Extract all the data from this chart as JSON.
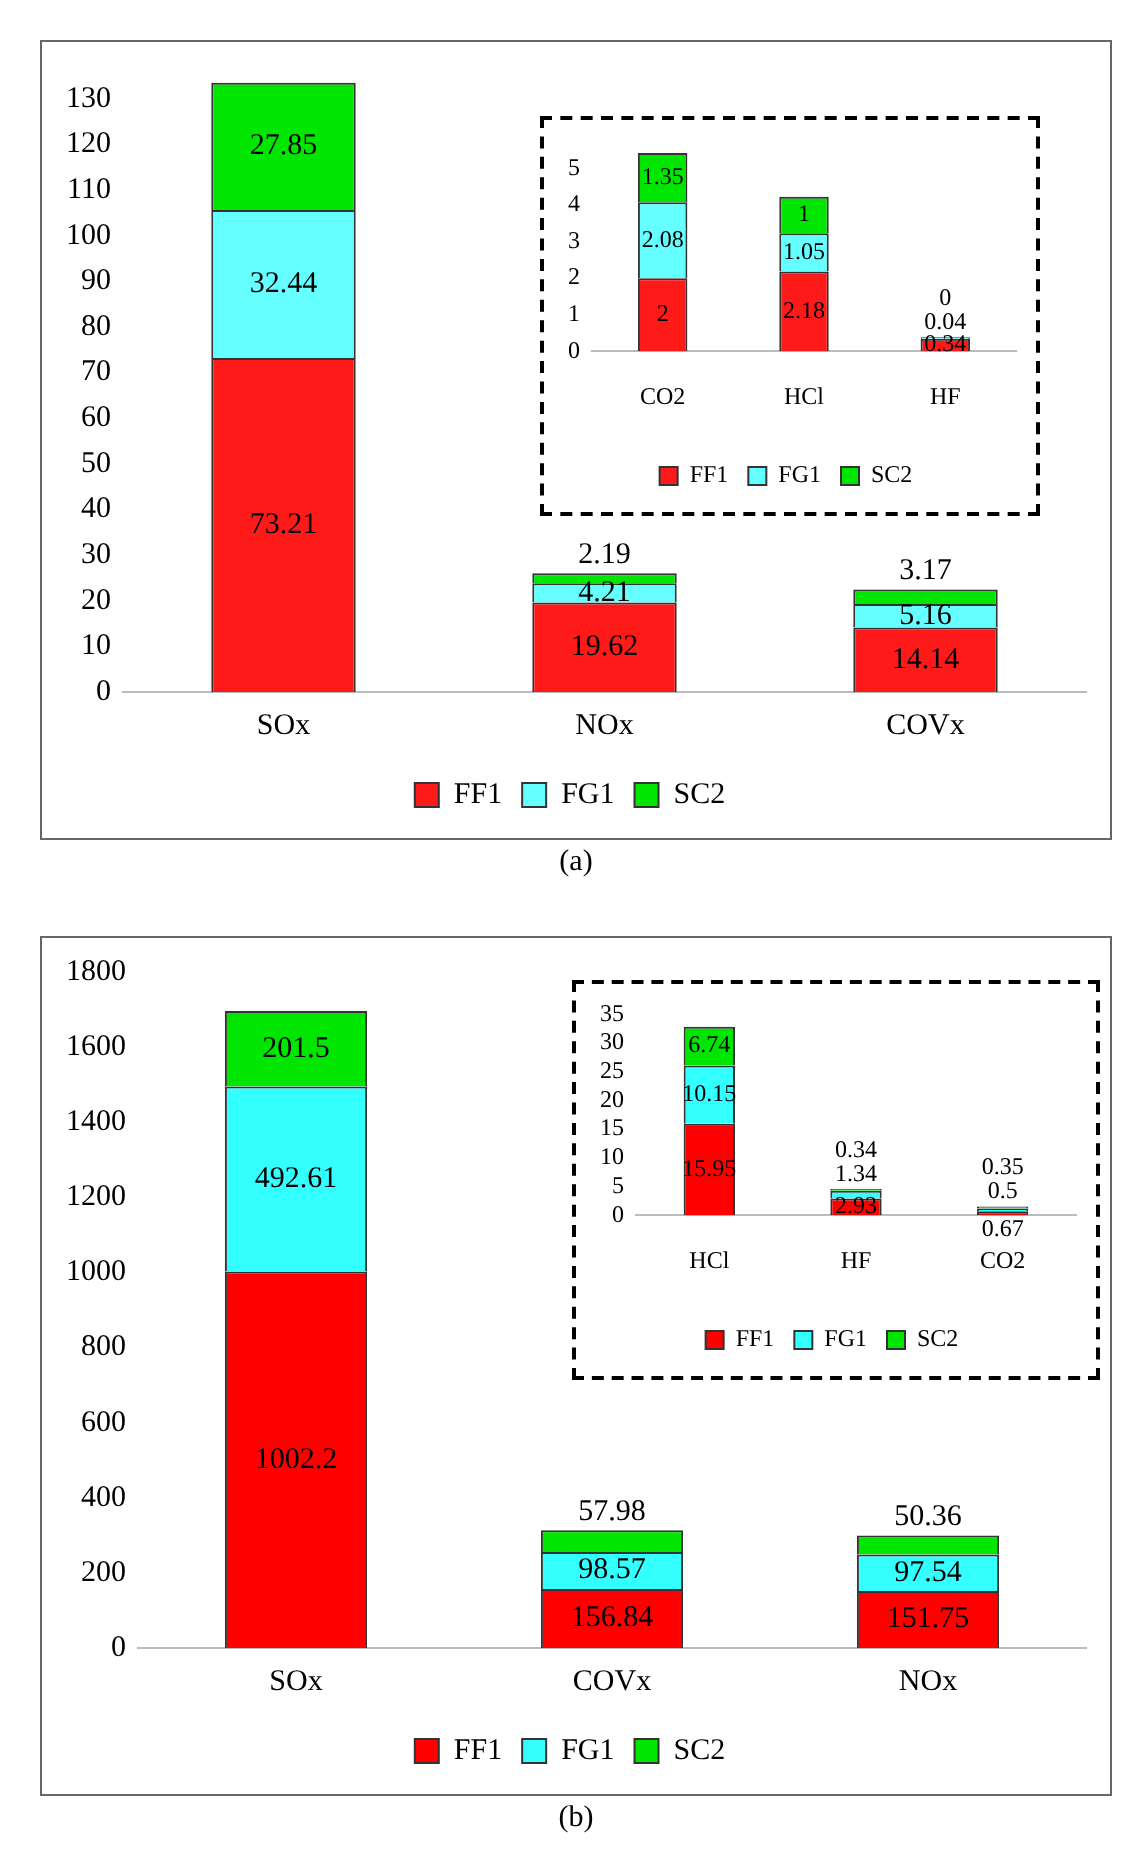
{
  "chart_data": [
    {
      "type": "bar",
      "stacked": true,
      "categories": [
        "SOx",
        "NOx",
        "COVx"
      ],
      "series": [
        {
          "name": "FF1",
          "color": "#ff1a1a",
          "values": [
            73.21,
            19.62,
            14.14
          ]
        },
        {
          "name": "FG1",
          "color": "#66ffff",
          "values": [
            32.44,
            4.21,
            5.16
          ]
        },
        {
          "name": "SC2",
          "color": "#00e600",
          "values": [
            27.85,
            2.19,
            3.17
          ]
        }
      ],
      "ylim": [
        0,
        135
      ],
      "yticks": [
        0,
        10,
        20,
        30,
        40,
        50,
        60,
        70,
        80,
        90,
        100,
        110,
        120,
        130
      ],
      "grid": false,
      "legend": "bottom",
      "data_labels": true,
      "annotations": [
        "(a)"
      ]
    },
    {
      "type": "bar",
      "stacked": true,
      "categories": [
        "CO2",
        "HCl",
        "HF"
      ],
      "series": [
        {
          "name": "FF1",
          "color": "#ff1a1a",
          "values": [
            2,
            2.18,
            0.34
          ]
        },
        {
          "name": "FG1",
          "color": "#66ffff",
          "values": [
            2.08,
            1.05,
            0.04
          ]
        },
        {
          "name": "SC2",
          "color": "#00e600",
          "values": [
            1.35,
            1,
            0
          ]
        }
      ],
      "ylim": [
        0,
        5.5
      ],
      "yticks": [
        0,
        1,
        2,
        3,
        4,
        5
      ],
      "grid": false,
      "legend": "bottom",
      "data_labels": true
    },
    {
      "type": "bar",
      "stacked": true,
      "categories": [
        "SOx",
        "COVx",
        "NOx"
      ],
      "series": [
        {
          "name": "FF1",
          "color": "#ff0000",
          "values": [
            1002.2,
            156.84,
            151.75
          ]
        },
        {
          "name": "FG1",
          "color": "#33ffff",
          "values": [
            492.61,
            98.57,
            97.54
          ]
        },
        {
          "name": "SC2",
          "color": "#00e600",
          "values": [
            201.5,
            57.98,
            50.36
          ]
        }
      ],
      "ylim": [
        0,
        1800
      ],
      "yticks": [
        0,
        200,
        400,
        600,
        800,
        1000,
        1200,
        1400,
        1600,
        1800
      ],
      "grid": false,
      "legend": "bottom",
      "data_labels": true,
      "annotations": [
        "(b)"
      ]
    },
    {
      "type": "bar",
      "stacked": true,
      "categories": [
        "HCl",
        "HF",
        "CO2"
      ],
      "series": [
        {
          "name": "FF1",
          "color": "#ff0000",
          "values": [
            15.95,
            2.93,
            0.67
          ]
        },
        {
          "name": "FG1",
          "color": "#33ffff",
          "values": [
            10.15,
            1.34,
            0.5
          ]
        },
        {
          "name": "SC2",
          "color": "#00e600",
          "values": [
            6.74,
            0.34,
            0.35
          ]
        }
      ],
      "ylim": [
        0,
        35
      ],
      "yticks": [
        0,
        5,
        10,
        15,
        20,
        25,
        30,
        35
      ],
      "grid": false,
      "legend": "bottom",
      "data_labels": true
    }
  ]
}
